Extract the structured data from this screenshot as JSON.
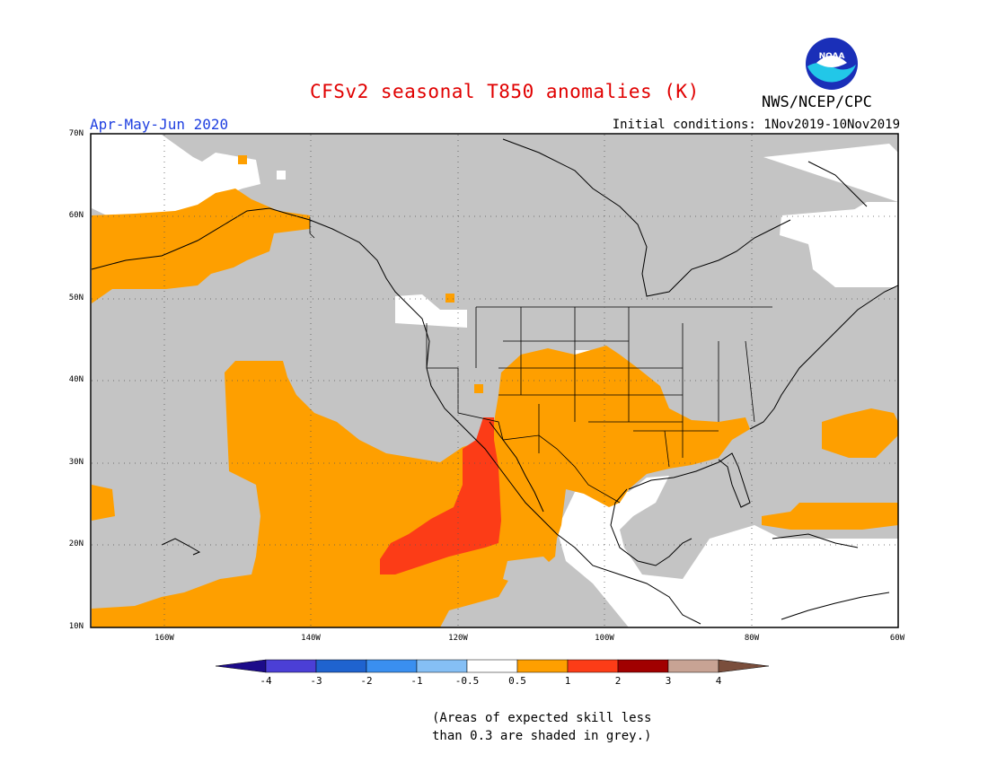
{
  "title": "CFSv2 seasonal T850 anomalies (K)",
  "period": "Apr-May-Jun 2020",
  "initial_conditions": "Initial conditions: 1Nov2019-10Nov2019",
  "agency": "NWS/NCEP/CPC",
  "logo_text": "NOAA",
  "lat_labels": [
    "70N",
    "60N",
    "50N",
    "40N",
    "30N",
    "20N",
    "10N"
  ],
  "lon_labels": [
    "160W",
    "140W",
    "120W",
    "100W",
    "80W",
    "60W"
  ],
  "colorbar": {
    "labels": [
      "-4",
      "-3",
      "-2",
      "-1",
      "-0.5",
      "0.5",
      "1",
      "2",
      "3",
      "4"
    ],
    "colors": [
      "#1c0b8a",
      "#4b3fd6",
      "#1f63cf",
      "#3a8ff0",
      "#85bff5",
      "#ffffff",
      "#fe9f00",
      "#fc3c17",
      "#a10000",
      "#c8a394",
      "#7a4e3c"
    ]
  },
  "skill_note_line1": "(Areas of expected skill less",
  "skill_note_line2": "than 0.3 are shaded in grey.)",
  "fill_colors": {
    "grey": "#c4c4c4",
    "orange": "#fe9f00",
    "red": "#fc3c17"
  }
}
